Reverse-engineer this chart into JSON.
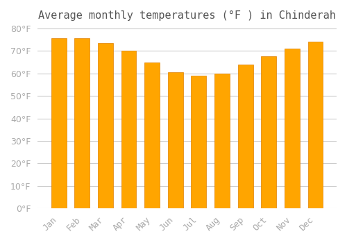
{
  "title": "Average monthly temperatures (°F ) in Chinderah",
  "months": [
    "Jan",
    "Feb",
    "Mar",
    "Apr",
    "May",
    "Jun",
    "Jul",
    "Aug",
    "Sep",
    "Oct",
    "Nov",
    "Dec"
  ],
  "values": [
    75.5,
    75.5,
    73.5,
    70.0,
    65.0,
    60.5,
    59.0,
    60.0,
    64.0,
    67.5,
    71.0,
    74.0
  ],
  "bar_color_face": "#FFA500",
  "bar_color_edge": "#E08000",
  "ylim": [
    0,
    80
  ],
  "yticks": [
    0,
    10,
    20,
    30,
    40,
    50,
    60,
    70,
    80
  ],
  "background_color": "#ffffff",
  "grid_color": "#cccccc",
  "title_fontsize": 11,
  "tick_fontsize": 9,
  "title_color": "#555555",
  "tick_color": "#aaaaaa"
}
